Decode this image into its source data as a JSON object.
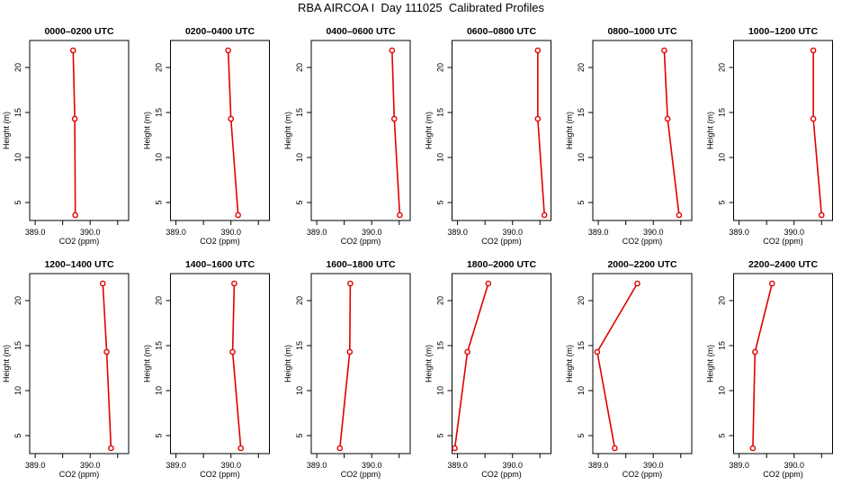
{
  "title": "RBA AIRCOA I  Day 111025  Calibrated Profiles",
  "colors": {
    "series": "#e00000",
    "axis": "#000000"
  },
  "chart_data": [
    {
      "type": "line",
      "title": "0000–0200 UTC",
      "xlabel": "CO2 (ppm)",
      "ylabel": "Height (m)",
      "xticks": [
        "389.0",
        "390.0"
      ],
      "yticks": [
        "5",
        "10",
        "15",
        "20"
      ],
      "xlim": [
        388.9,
        390.7
      ],
      "ylim": [
        3,
        23
      ],
      "grid": false,
      "x": [
        389.69,
        389.72,
        389.73
      ],
      "y": [
        21.9,
        14.3,
        3.6
      ]
    },
    {
      "type": "line",
      "title": "0200–0400 UTC",
      "xlabel": "CO2 (ppm)",
      "ylabel": "Height (m)",
      "xticks": [
        "389.0",
        "390.0"
      ],
      "yticks": [
        "5",
        "10",
        "15",
        "20"
      ],
      "xlim": [
        388.9,
        390.7
      ],
      "ylim": [
        3,
        23
      ],
      "grid": false,
      "x": [
        389.95,
        390.0,
        390.13
      ],
      "y": [
        21.9,
        14.3,
        3.6
      ]
    },
    {
      "type": "line",
      "title": "0400–0600 UTC",
      "xlabel": "CO2 (ppm)",
      "ylabel": "Height (m)",
      "xticks": [
        "389.0",
        "390.0"
      ],
      "yticks": [
        "5",
        "10",
        "15",
        "20"
      ],
      "xlim": [
        388.9,
        390.7
      ],
      "ylim": [
        3,
        23
      ],
      "grid": false,
      "x": [
        390.37,
        390.41,
        390.51
      ],
      "y": [
        21.9,
        14.3,
        3.6
      ]
    },
    {
      "type": "line",
      "title": "0600–0800 UTC",
      "xlabel": "CO2 (ppm)",
      "ylabel": "Height (m)",
      "xticks": [
        "389.0",
        "390.0"
      ],
      "yticks": [
        "5",
        "10",
        "15",
        "20"
      ],
      "xlim": [
        388.9,
        390.7
      ],
      "ylim": [
        3,
        23
      ],
      "grid": false,
      "x": [
        390.46,
        390.46,
        390.58
      ],
      "y": [
        21.9,
        14.3,
        3.6
      ]
    },
    {
      "type": "line",
      "title": "0800–1000 UTC",
      "xlabel": "CO2 (ppm)",
      "ylabel": "Height (m)",
      "xticks": [
        "389.0",
        "390.0"
      ],
      "yticks": [
        "5",
        "10",
        "15",
        "20"
      ],
      "xlim": [
        388.9,
        390.7
      ],
      "ylim": [
        3,
        23
      ],
      "grid": false,
      "x": [
        390.2,
        390.26,
        390.47
      ],
      "y": [
        21.9,
        14.3,
        3.6
      ]
    },
    {
      "type": "line",
      "title": "1000–1200 UTC",
      "xlabel": "CO2 (ppm)",
      "ylabel": "Height (m)",
      "xticks": [
        "389.0",
        "390.0"
      ],
      "yticks": [
        "5",
        "10",
        "15",
        "20"
      ],
      "xlim": [
        388.9,
        390.7
      ],
      "ylim": [
        3,
        23
      ],
      "grid": false,
      "x": [
        390.35,
        390.35,
        390.5
      ],
      "y": [
        21.9,
        14.3,
        3.6
      ]
    },
    {
      "type": "line",
      "title": "1200–1400 UTC",
      "xlabel": "CO2 (ppm)",
      "ylabel": "Height (m)",
      "xticks": [
        "389.0",
        "390.0"
      ],
      "yticks": [
        "5",
        "10",
        "15",
        "20"
      ],
      "xlim": [
        388.9,
        390.7
      ],
      "ylim": [
        3,
        23
      ],
      "grid": false,
      "x": [
        390.23,
        390.3,
        390.38
      ],
      "y": [
        21.9,
        14.3,
        3.6
      ]
    },
    {
      "type": "line",
      "title": "1400–1600 UTC",
      "xlabel": "CO2 (ppm)",
      "ylabel": "Height (m)",
      "xticks": [
        "389.0",
        "390.0"
      ],
      "yticks": [
        "5",
        "10",
        "15",
        "20"
      ],
      "xlim": [
        388.9,
        390.7
      ],
      "ylim": [
        3,
        23
      ],
      "grid": false,
      "x": [
        390.06,
        390.03,
        390.18
      ],
      "y": [
        21.9,
        14.3,
        3.6
      ]
    },
    {
      "type": "line",
      "title": "1600–1800 UTC",
      "xlabel": "CO2 (ppm)",
      "ylabel": "Height (m)",
      "xticks": [
        "389.0",
        "390.0"
      ],
      "yticks": [
        "5",
        "10",
        "15",
        "20"
      ],
      "xlim": [
        388.9,
        390.7
      ],
      "ylim": [
        3,
        23
      ],
      "grid": false,
      "x": [
        389.61,
        389.6,
        389.42
      ],
      "y": [
        21.9,
        14.3,
        3.6
      ]
    },
    {
      "type": "line",
      "title": "1800–2000 UTC",
      "xlabel": "CO2 (ppm)",
      "ylabel": "Height (m)",
      "xticks": [
        "389.0",
        "390.0"
      ],
      "yticks": [
        "5",
        "10",
        "15",
        "20"
      ],
      "xlim": [
        388.9,
        390.7
      ],
      "ylim": [
        3,
        23
      ],
      "grid": false,
      "x": [
        389.56,
        389.18,
        388.95
      ],
      "y": [
        21.9,
        14.3,
        3.6
      ]
    },
    {
      "type": "line",
      "title": "2000–2200 UTC",
      "xlabel": "CO2 (ppm)",
      "ylabel": "Height (m)",
      "xticks": [
        "389.0",
        "390.0"
      ],
      "yticks": [
        "5",
        "10",
        "15",
        "20"
      ],
      "xlim": [
        388.9,
        390.7
      ],
      "ylim": [
        3,
        23
      ],
      "grid": false,
      "x": [
        389.71,
        388.98,
        389.3
      ],
      "y": [
        21.9,
        14.3,
        3.6
      ]
    },
    {
      "type": "line",
      "title": "2200–2400 UTC",
      "xlabel": "CO2 (ppm)",
      "ylabel": "Height (m)",
      "xticks": [
        "389.0",
        "390.0"
      ],
      "yticks": [
        "5",
        "10",
        "15",
        "20"
      ],
      "xlim": [
        388.9,
        390.7
      ],
      "ylim": [
        3,
        23
      ],
      "grid": false,
      "x": [
        389.6,
        389.29,
        389.25
      ],
      "y": [
        21.9,
        14.3,
        3.6
      ]
    }
  ]
}
